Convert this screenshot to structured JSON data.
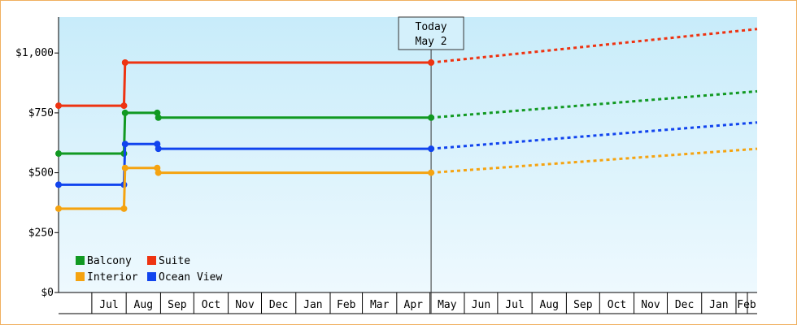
{
  "chart_data": {
    "type": "line",
    "title": "",
    "xlabel": "",
    "ylabel": "",
    "ylim": [
      0,
      1150
    ],
    "y_ticks": [
      {
        "value": 0,
        "label": "$0"
      },
      {
        "value": 250,
        "label": "$250"
      },
      {
        "value": 500,
        "label": "$500"
      },
      {
        "value": 750,
        "label": "$750"
      },
      {
        "value": 1000,
        "label": "$1,000"
      }
    ],
    "x_range": [
      "2024-06-01",
      "2025-03-01"
    ],
    "x_ticks": [
      "Jul",
      "Aug",
      "Sep",
      "Oct",
      "Nov",
      "Dec",
      "Jan",
      "Feb",
      "Mar",
      "Apr",
      "May",
      "Jun",
      "Jul",
      "Aug",
      "Sep",
      "Oct",
      "Nov",
      "Dec",
      "Jan",
      "Feb"
    ],
    "today": {
      "date": "2024-05-02",
      "label_line1": "Today",
      "label_line2": "May 2"
    },
    "legend_position": "bottom-left",
    "grid": false,
    "series": [
      {
        "name": "Suite",
        "color": "#ee3311",
        "points": [
          [
            "2023-06-01",
            780
          ],
          [
            "2023-07-30",
            780
          ],
          [
            "2023-07-31",
            960
          ],
          [
            "2024-05-02",
            960
          ]
        ],
        "forecast": [
          [
            "2024-05-02",
            960
          ],
          [
            "2025-03-01",
            1100
          ]
        ]
      },
      {
        "name": "Balcony",
        "color": "#119922",
        "points": [
          [
            "2023-06-01",
            580
          ],
          [
            "2023-07-30",
            580
          ],
          [
            "2023-07-31",
            750
          ],
          [
            "2023-08-29",
            750
          ],
          [
            "2023-08-30",
            730
          ],
          [
            "2024-05-02",
            730
          ]
        ],
        "forecast": [
          [
            "2024-05-02",
            730
          ],
          [
            "2025-03-01",
            840
          ]
        ]
      },
      {
        "name": "Ocean View",
        "color": "#1144ee",
        "points": [
          [
            "2023-06-01",
            450
          ],
          [
            "2023-07-30",
            450
          ],
          [
            "2023-07-31",
            620
          ],
          [
            "2023-08-29",
            620
          ],
          [
            "2023-08-30",
            600
          ],
          [
            "2024-05-02",
            600
          ]
        ],
        "forecast": [
          [
            "2024-05-02",
            600
          ],
          [
            "2025-03-01",
            710
          ]
        ]
      },
      {
        "name": "Interior",
        "color": "#f5a310",
        "points": [
          [
            "2023-06-01",
            350
          ],
          [
            "2023-07-30",
            350
          ],
          [
            "2023-07-31",
            520
          ],
          [
            "2023-08-29",
            520
          ],
          [
            "2023-08-30",
            500
          ],
          [
            "2024-05-02",
            500
          ]
        ],
        "forecast": [
          [
            "2024-05-02",
            500
          ],
          [
            "2025-03-01",
            600
          ]
        ]
      }
    ],
    "legend": [
      "Balcony",
      "Suite",
      "Interior",
      "Ocean View"
    ]
  }
}
